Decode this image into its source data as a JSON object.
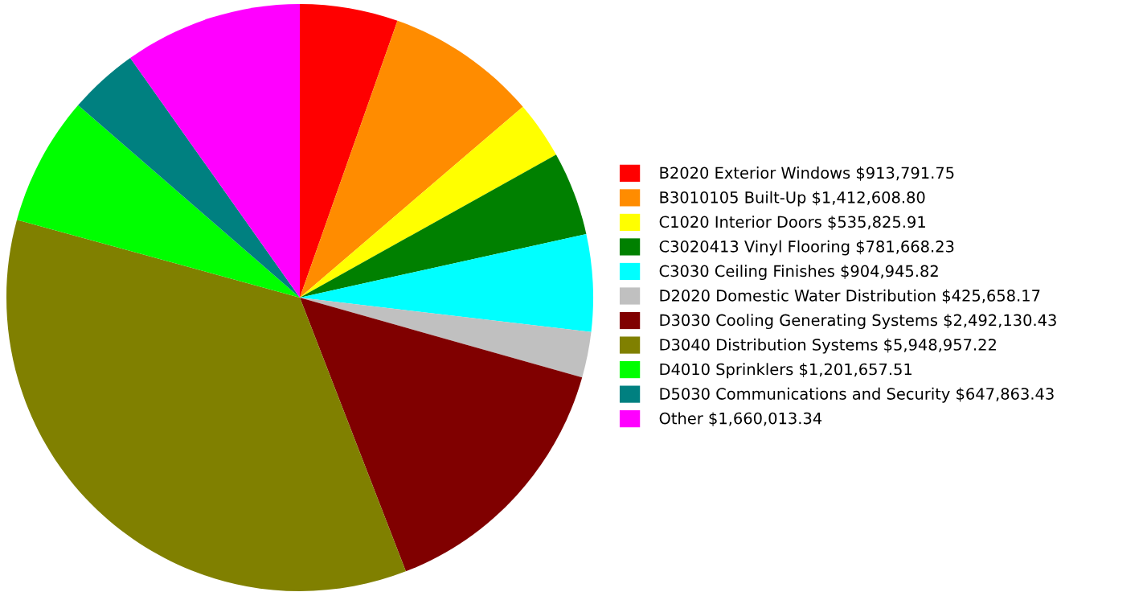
{
  "chart_data": {
    "type": "pie",
    "categories": [
      "B2020 Exterior Windows $913,791.75",
      "B3010105 Built-Up $1,412,608.80",
      "C1020 Interior Doors $535,825.91",
      "C3020413 Vinyl Flooring $781,668.23",
      "C3030 Ceiling Finishes $904,945.82",
      "D2020 Domestic Water Distribution $425,658.17",
      "D3030 Cooling Generating Systems $2,492,130.43",
      "D3040 Distribution Systems $5,948,957.22",
      "D4010 Sprinklers $1,201,657.51",
      "D5030 Communications and Security $647,863.43",
      "Other $1,660,013.34"
    ],
    "values": [
      913791.75,
      1412608.8,
      535825.91,
      781668.23,
      904945.82,
      425658.17,
      2492130.43,
      5948957.22,
      1201657.51,
      647863.43,
      1660013.34
    ],
    "colors": [
      "#ff0000",
      "#ff8c00",
      "#ffff00",
      "#008000",
      "#00ffff",
      "#c0c0c0",
      "#800000",
      "#808000",
      "#00ff00",
      "#008080",
      "#ff00ff"
    ],
    "legend": "right"
  }
}
